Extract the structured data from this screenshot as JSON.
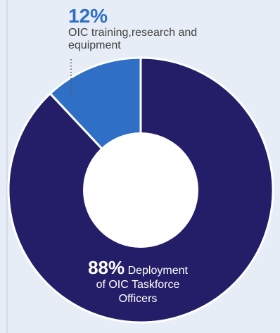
{
  "chart_data": {
    "type": "pie",
    "slices": [
      {
        "label": "OIC training,research and equipment",
        "value": 12,
        "display": "12%",
        "color": "#2f6fc5"
      },
      {
        "label": "Deployment of OIC Taskforce Officers",
        "value": 88,
        "display": "88%",
        "color": "#241e68"
      }
    ],
    "hole": "donut",
    "gap_color": "#ffffff",
    "inner_color": "#ffffff"
  },
  "callouts": {
    "small": {
      "percent": "12%",
      "label": "OIC training,research and equipment"
    },
    "large": {
      "percent": "88%",
      "label_line1": "Deployment",
      "label_line2": "of OIC Taskforce",
      "label_line3": "Officers"
    }
  },
  "leader_line": {
    "style": "dotted",
    "color": "#555555"
  }
}
